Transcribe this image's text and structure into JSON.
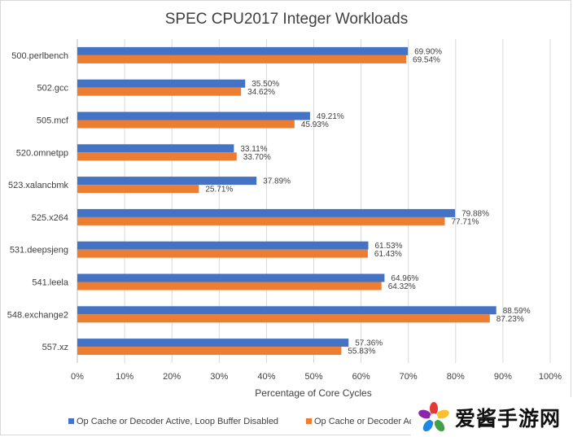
{
  "chart_data": {
    "type": "bar",
    "orientation": "horizontal",
    "title": "SPEC CPU2017 Integer Workloads",
    "xlabel": "Percentage of Core Cycles",
    "ylabel": "",
    "xlim": [
      0,
      100
    ],
    "x_ticks": [
      "0%",
      "10%",
      "20%",
      "30%",
      "40%",
      "50%",
      "60%",
      "70%",
      "80%",
      "90%",
      "100%"
    ],
    "grid": "vertical",
    "legend_position": "bottom",
    "categories": [
      "500.perlbench",
      "502.gcc",
      "505.mcf",
      "520.omnetpp",
      "523.xalancbmk",
      "525.x264",
      "531.deepsjeng",
      "541.leela",
      "548.exchange2",
      "557.xz"
    ],
    "series": [
      {
        "name": "Op Cache or Decoder Active, Loop Buffer Disabled",
        "color": "#4472c4",
        "values": [
          69.9,
          35.5,
          49.21,
          33.11,
          37.89,
          79.88,
          61.53,
          64.96,
          88.59,
          57.36
        ],
        "labels": [
          "69.90%",
          "35.50%",
          "49.21%",
          "33.11%",
          "37.89%",
          "79.88%",
          "61.53%",
          "64.96%",
          "88.59%",
          "57.36%"
        ]
      },
      {
        "name": "Op Cache or Decoder Ac",
        "color": "#ed7d31",
        "values": [
          69.54,
          34.62,
          45.93,
          33.7,
          25.71,
          77.71,
          61.43,
          64.32,
          87.23,
          55.83
        ],
        "labels": [
          "69.54%",
          "34.62%",
          "45.93%",
          "33.70%",
          "25.71%",
          "77.71%",
          "61.43%",
          "64.32%",
          "87.23%",
          "55.83%"
        ]
      }
    ]
  },
  "watermark": {
    "text": "爱酱手游网",
    "icon": "flower-logo-icon"
  }
}
